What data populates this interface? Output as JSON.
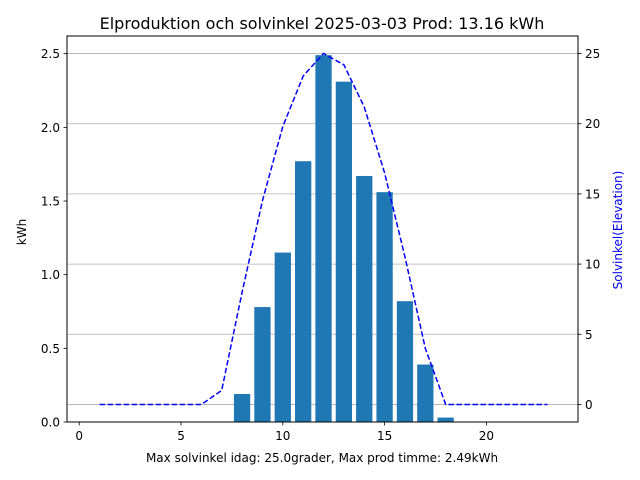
{
  "chart_data": {
    "type": "bar",
    "title": "Elproduktion och solvinkel 2025-03-03 Prod: 13.16 kWh",
    "xlabel": "Max solvinkel idag: 25.0grader, Max prod timme: 2.49kWh",
    "ylabel": "kWh",
    "y2label": "Solvinkel(Elevation)",
    "xlim": [
      -0.6,
      24.5
    ],
    "ylim": [
      0,
      2.62
    ],
    "y2lim": [
      -1.25,
      26.25
    ],
    "xticks": [
      "0",
      "5",
      "10",
      "15",
      "20"
    ],
    "yticks": [
      "0.0",
      "0.5",
      "1.0",
      "1.5",
      "2.0",
      "2.5"
    ],
    "y2ticks": [
      "0",
      "5",
      "10",
      "15",
      "20",
      "25"
    ],
    "grid": "right-axis horizontal",
    "colors": {
      "bars": "#1f77b4",
      "line": "#0000ff",
      "grid": "#b0b0b0"
    },
    "series": [
      {
        "type": "bar",
        "axis": "left",
        "x": [
          8,
          9,
          10,
          11,
          12,
          13,
          14,
          15,
          16,
          17,
          18
        ],
        "values": [
          0.19,
          0.78,
          1.15,
          1.77,
          2.49,
          2.31,
          1.67,
          1.56,
          0.82,
          0.39,
          0.03
        ]
      },
      {
        "type": "line",
        "axis": "right",
        "style": "dashed",
        "x": [
          1,
          2,
          3,
          4,
          5,
          6,
          7,
          8,
          9,
          10,
          11,
          12,
          13,
          14,
          15,
          16,
          17,
          18,
          19,
          20,
          21,
          22,
          23
        ],
        "values": [
          0,
          0,
          0,
          0,
          0,
          0,
          1.0,
          8.0,
          14.5,
          19.8,
          23.4,
          25.0,
          24.2,
          21.2,
          16.5,
          10.5,
          4.0,
          0,
          0,
          0,
          0,
          0,
          0
        ]
      }
    ]
  }
}
